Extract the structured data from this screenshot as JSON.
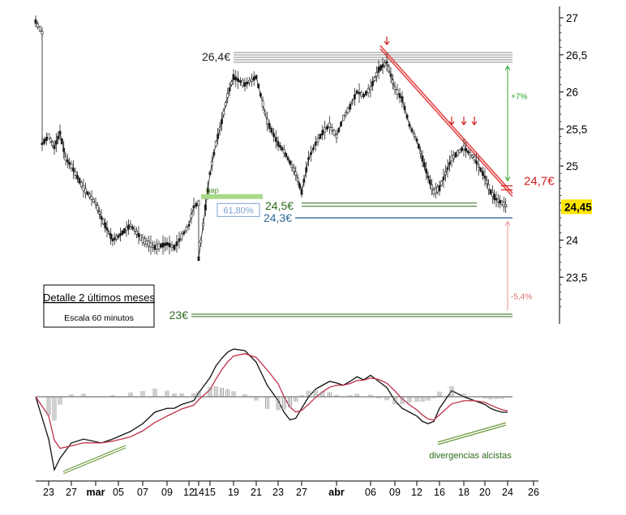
{
  "chart_data": [
    {
      "type": "candlestick",
      "ylim": [
        23.0,
        27.0
      ],
      "yticks": [
        "27",
        "26,5",
        "26",
        "25,5",
        "25",
        "24,5",
        "24",
        "23,5"
      ],
      "ytick_values": [
        27,
        26.5,
        26,
        25.5,
        25,
        24.5,
        24,
        23.5
      ],
      "last_price_label": "24,45",
      "last_price": 24.45,
      "price_path": [
        [
          "02-21",
          26.95
        ],
        [
          "02-22",
          26.8
        ],
        [
          "02-22",
          25.3
        ],
        [
          "02-23",
          25.4
        ],
        [
          "02-24",
          25.25
        ],
        [
          "02-25",
          25.45
        ],
        [
          "02-26",
          25.1
        ],
        [
          "02-27",
          25.0
        ],
        [
          "02-28",
          24.7
        ],
        [
          "03-01",
          24.5
        ],
        [
          "03-02",
          24.3
        ],
        [
          "03-03",
          24.15
        ],
        [
          "03-04",
          24.0
        ],
        [
          "03-05",
          24.05
        ],
        [
          "03-06",
          24.2
        ],
        [
          "03-07",
          24.0
        ],
        [
          "03-08",
          23.9
        ],
        [
          "03-09",
          23.95
        ],
        [
          "03-10",
          23.9
        ],
        [
          "03-11",
          24.05
        ],
        [
          "03-12",
          24.2
        ],
        [
          "03-13",
          24.45
        ],
        [
          "03-14",
          24.5
        ],
        [
          "03-14",
          23.75
        ],
        [
          "03-15",
          24.9
        ],
        [
          "03-16",
          25.3
        ],
        [
          "03-17",
          25.6
        ],
        [
          "03-18",
          25.95
        ],
        [
          "03-19",
          26.2
        ],
        [
          "03-20",
          26.1
        ],
        [
          "03-21",
          26.2
        ],
        [
          "03-22",
          25.6
        ],
        [
          "03-23",
          25.3
        ],
        [
          "03-24",
          25.2
        ],
        [
          "03-25",
          25.05
        ],
        [
          "03-26",
          24.9
        ],
        [
          "03-27",
          24.65
        ],
        [
          "03-28",
          25.1
        ],
        [
          "03-29",
          25.3
        ],
        [
          "03-30",
          25.45
        ],
        [
          "03-31",
          25.55
        ],
        [
          "04-01",
          25.4
        ],
        [
          "04-02",
          25.65
        ],
        [
          "04-03",
          25.8
        ],
        [
          "04-04",
          26.0
        ],
        [
          "04-05",
          25.95
        ],
        [
          "04-06",
          26.05
        ],
        [
          "04-07",
          26.3
        ],
        [
          "04-08",
          26.4
        ],
        [
          "04-09",
          26.05
        ],
        [
          "04-10",
          25.9
        ],
        [
          "04-11",
          25.55
        ],
        [
          "04-12",
          25.35
        ],
        [
          "04-13",
          25.1
        ],
        [
          "04-14",
          24.85
        ],
        [
          "04-15",
          24.65
        ],
        [
          "04-16",
          24.7
        ],
        [
          "04-17",
          25.1
        ],
        [
          "04-18",
          25.25
        ],
        [
          "04-19",
          25.1
        ],
        [
          "04-20",
          24.85
        ],
        [
          "04-21",
          24.65
        ],
        [
          "04-22",
          24.55
        ],
        [
          "04-23",
          24.5
        ],
        [
          "04-24",
          24.45
        ]
      ],
      "levels": [
        {
          "label": "26,4€",
          "value": 26.4,
          "color": "#555555"
        },
        {
          "label": "24,5€",
          "value": 24.5,
          "color": "#2d6b1f"
        },
        {
          "label": "24,3€",
          "value": 24.3,
          "color": "#2c6a9a"
        },
        {
          "label": "23€",
          "value": 23.0,
          "color": "#2d6b1f"
        }
      ],
      "downtrend": {
        "from": [
          "04-08",
          26.45
        ],
        "to": [
          "04-24",
          24.7
        ],
        "label": "24,7€",
        "color": "#e03030"
      },
      "gap_label": "gap",
      "fib_label": "61,80%",
      "up_target_label": "+7%",
      "down_target_label": "-5,4%",
      "arrow_dates": [
        "04-08",
        "04-17",
        "04-18",
        "04-19"
      ],
      "box_title": "Detalle 2 últimos meses",
      "box_subtitle": "Escala 60 minutos"
    },
    {
      "type": "macd",
      "macd": [
        [
          "02-21",
          0.0
        ],
        [
          "02-23",
          -0.55
        ],
        [
          "02-24",
          -0.95
        ],
        [
          "02-25",
          -0.8
        ],
        [
          "02-27",
          -0.6
        ],
        [
          "02-28",
          -0.55
        ],
        [
          "03-02",
          -0.6
        ],
        [
          "03-04",
          -0.55
        ],
        [
          "03-06",
          -0.45
        ],
        [
          "03-07",
          -0.35
        ],
        [
          "03-08",
          -0.2
        ],
        [
          "03-09",
          -0.15
        ],
        [
          "03-10",
          -0.15
        ],
        [
          "03-11",
          -0.1
        ],
        [
          "03-13",
          -0.05
        ],
        [
          "03-14",
          0.05
        ],
        [
          "03-15",
          0.25
        ],
        [
          "03-16",
          0.4
        ],
        [
          "03-17",
          0.5
        ],
        [
          "03-18",
          0.58
        ],
        [
          "03-19",
          0.62
        ],
        [
          "03-20",
          0.6
        ],
        [
          "03-21",
          0.45
        ],
        [
          "03-22",
          0.15
        ],
        [
          "03-23",
          -0.05
        ],
        [
          "03-24",
          -0.2
        ],
        [
          "03-25",
          -0.3
        ],
        [
          "03-26",
          -0.28
        ],
        [
          "03-27",
          -0.15
        ],
        [
          "03-28",
          0.0
        ],
        [
          "03-29",
          0.1
        ],
        [
          "03-30",
          0.15
        ],
        [
          "03-31",
          0.2
        ],
        [
          "04-01",
          0.18
        ],
        [
          "04-02",
          0.15
        ],
        [
          "04-03",
          0.2
        ],
        [
          "04-04",
          0.26
        ],
        [
          "04-05",
          0.22
        ],
        [
          "04-06",
          0.28
        ],
        [
          "04-07",
          0.2
        ],
        [
          "04-08",
          0.12
        ],
        [
          "04-09",
          -0.05
        ],
        [
          "04-10",
          -0.15
        ],
        [
          "04-11",
          -0.2
        ],
        [
          "04-12",
          -0.25
        ],
        [
          "04-13",
          -0.32
        ],
        [
          "04-14",
          -0.35
        ],
        [
          "04-15",
          -0.32
        ],
        [
          "04-16",
          -0.15
        ],
        [
          "04-17",
          0.08
        ],
        [
          "04-18",
          0.0
        ],
        [
          "04-19",
          -0.05
        ],
        [
          "04-20",
          -0.1
        ],
        [
          "04-21",
          -0.15
        ],
        [
          "04-22",
          -0.18
        ],
        [
          "04-23",
          -0.2
        ],
        [
          "04-24",
          -0.2
        ]
      ],
      "divergence_label": "divergencias alcistas",
      "line_colors": {
        "macd": "#111111",
        "signal": "#c0304a",
        "divergence": "#6a9a3a"
      }
    }
  ],
  "x_axis": {
    "ticks": [
      {
        "label": "23",
        "date": "02-23"
      },
      {
        "label": "27",
        "date": "02-27"
      },
      {
        "label": "mar",
        "date": "03-01"
      },
      {
        "label": "05",
        "date": "03-05"
      },
      {
        "label": "07",
        "date": "03-07"
      },
      {
        "label": "09",
        "date": "03-09"
      },
      {
        "label": "12",
        "date": "03-12"
      },
      {
        "label": "14",
        "date": "03-14"
      },
      {
        "label": "15",
        "date": "03-15"
      },
      {
        "label": "19",
        "date": "03-19"
      },
      {
        "label": "21",
        "date": "03-21"
      },
      {
        "label": "23",
        "date": "03-23"
      },
      {
        "label": "27",
        "date": "03-27"
      },
      {
        "label": "abr",
        "date": "04-01"
      },
      {
        "label": "06",
        "date": "04-06"
      },
      {
        "label": "09",
        "date": "04-09"
      },
      {
        "label": "12",
        "date": "04-12"
      },
      {
        "label": "16",
        "date": "04-16"
      },
      {
        "label": "18",
        "date": "04-18"
      },
      {
        "label": "20",
        "date": "04-20"
      },
      {
        "label": "24",
        "date": "04-24"
      },
      {
        "label": "26",
        "date": "04-26"
      }
    ],
    "bold_labels": [
      "mar",
      "abr"
    ]
  }
}
